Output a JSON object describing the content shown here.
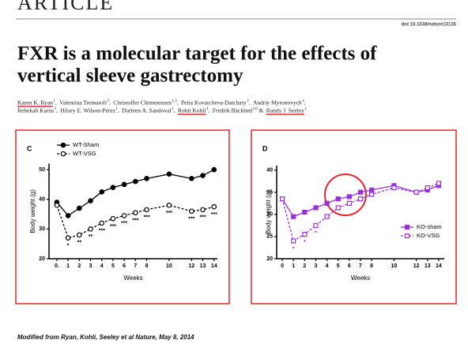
{
  "header": {
    "section": "ARTICLE",
    "doi": "doi:10.1038/nature13135",
    "title_lines": [
      "FXR is a molecular target for the effects of",
      "vertical sleeve gastrectomy"
    ],
    "author_lines": [
      [
        {
          "name": "Karen K. Ryan",
          "affil": "1",
          "after": ", ",
          "underlined": true
        },
        {
          "name": "Valentina Tremaroli",
          "affil": "2",
          "after": ", "
        },
        {
          "name": "Christoffer Clemmensen",
          "affil": "1,3",
          "after": ", "
        },
        {
          "name": "Petia Kovatcheva-Datchary",
          "affil": "2",
          "after": ", "
        },
        {
          "name": "Andriy Myronovych",
          "affil": "4",
          "after": ","
        }
      ],
      [
        {
          "name": "Rebekah Karns",
          "affil": "5",
          "after": ", "
        },
        {
          "name": "Hilary E. Wilson-Pérez",
          "affil": "1",
          "after": ", "
        },
        {
          "name": "Darleen A. Sandoval",
          "affil": "1",
          "after": ", "
        },
        {
          "name": "Rohit Kohli",
          "affil": "4",
          "after": ", ",
          "underlined": true
        },
        {
          "name": "Fredrik Bäckhed",
          "affil": "2,6",
          "after": " & "
        },
        {
          "name": "Randy J. Seeley",
          "affil": "1",
          "underlined": true
        }
      ]
    ]
  },
  "footer": "Modified from Ryan, Kohli, Seeley et al Nature, May 8, 2014",
  "chart_data": [
    {
      "type": "line",
      "panel": "C",
      "x_label": "Weeks",
      "y_label": "Body weight (g)",
      "x": [
        0,
        1,
        2,
        3,
        4,
        5,
        6,
        7,
        8,
        10,
        12,
        13,
        14
      ],
      "xlim": [
        -0.7,
        14.3
      ],
      "xticks": [
        {
          "value": 0,
          "label": "0."
        },
        1,
        2,
        3,
        4,
        5,
        6,
        7,
        8,
        10,
        12,
        13,
        14
      ],
      "ylim": [
        20,
        52
      ],
      "yticks": [
        20,
        30,
        40,
        50
      ],
      "legend": "upper left",
      "series": [
        {
          "name": "WT-Sham",
          "color": "#000000",
          "linestyle": "solid",
          "marker": "filled",
          "marker_shape": "circle",
          "values": [
            39,
            34.5,
            37,
            39.5,
            42.5,
            44,
            45,
            46,
            47,
            48.5,
            47,
            48,
            50
          ]
        },
        {
          "name": "WT-VSG",
          "color": "#000000",
          "linestyle": "dashed",
          "marker": "open",
          "marker_shape": "circle",
          "values": [
            38,
            27,
            28,
            30,
            32,
            33.5,
            34.5,
            35.5,
            36.5,
            38,
            36,
            36.5,
            37.5
          ]
        }
      ],
      "annotations": [
        {
          "x": 1,
          "text": "*"
        },
        {
          "x": 2,
          "text": "**"
        },
        {
          "x": 3,
          "text": "**"
        },
        {
          "x": 4,
          "text": "***"
        },
        {
          "x": 5,
          "text": "***"
        },
        {
          "x": 6,
          "text": "***"
        },
        {
          "x": 7,
          "text": "***"
        },
        {
          "x": 8,
          "text": "***"
        },
        {
          "x": 10,
          "text": "***"
        },
        {
          "x": 12,
          "text": "***"
        },
        {
          "x": 13,
          "text": "***"
        },
        {
          "x": 14,
          "text": "***"
        }
      ]
    },
    {
      "type": "line",
      "panel": "D",
      "x_label": "Weeks",
      "y_label": "Body weight (g)",
      "x": [
        0,
        1,
        2,
        3,
        4,
        5,
        6,
        7,
        8,
        10,
        12,
        13,
        14
      ],
      "xlim": [
        -0.5,
        14.5
      ],
      "xticks": [
        0,
        1,
        2,
        3,
        4,
        5,
        6,
        7,
        8,
        10,
        12,
        13,
        14
      ],
      "ylim": [
        20,
        41
      ],
      "yticks": [
        20,
        25,
        30,
        35,
        40
      ],
      "legend": "lower right",
      "series": [
        {
          "name": "KO-sham",
          "color": "#9b30d9",
          "linestyle": "solid",
          "marker": "filled",
          "marker_shape": "square",
          "values": [
            33.5,
            29.5,
            30.5,
            31.5,
            32.5,
            33.5,
            34,
            35,
            35.5,
            36.5,
            35,
            35.5,
            36.5
          ]
        },
        {
          "name": "KO-VSG",
          "color": "#9b30d9",
          "linestyle": "dashed",
          "marker": "open",
          "marker_shape": "square",
          "values": [
            33.5,
            24,
            25.5,
            27.5,
            29.5,
            31.5,
            32.5,
            33.5,
            34.5,
            36,
            35,
            36,
            37
          ]
        }
      ],
      "annotations": [
        {
          "x": 1,
          "text": "*"
        },
        {
          "x": 2,
          "text": "*"
        },
        {
          "x": 3,
          "text": "*"
        }
      ]
    }
  ]
}
